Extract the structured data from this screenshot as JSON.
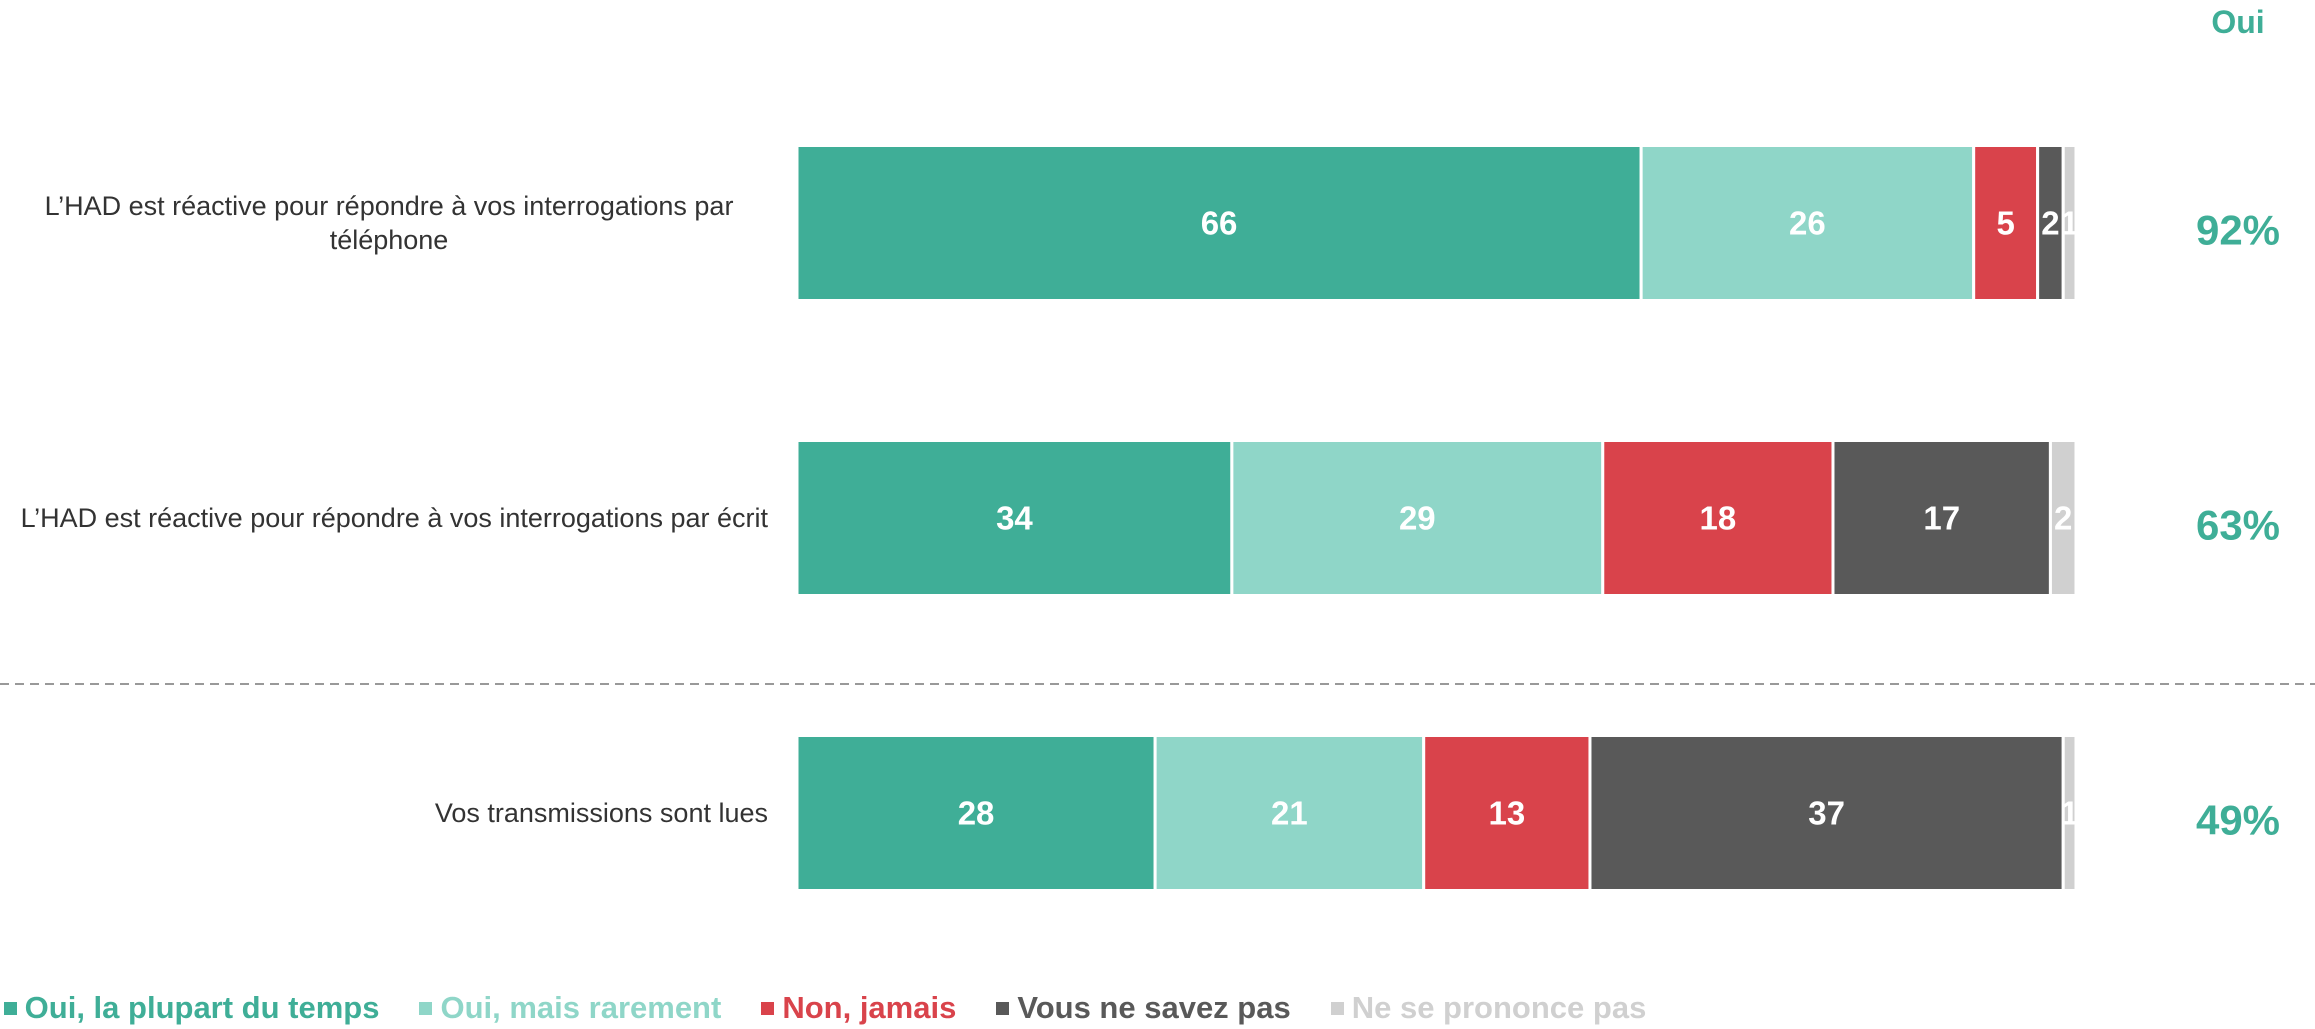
{
  "chart_data": {
    "type": "stacked-bar-horizontal",
    "categories": [
      "L’HAD est réactive pour répondre à vos interrogations par téléphone",
      "L’HAD est réactive pour répondre à vos interrogations par écrit",
      "Vos transmissions sont lues"
    ],
    "series": [
      {
        "name": "Oui, la plupart du temps",
        "color": "#3fae97",
        "values": [
          66,
          34,
          28
        ]
      },
      {
        "name": "Oui, mais rarement",
        "color": "#8fd6c8",
        "values": [
          26,
          29,
          21
        ]
      },
      {
        "name": "Non, jamais",
        "color": "#d9434b",
        "values": [
          5,
          18,
          13
        ]
      },
      {
        "name": "Vous ne savez pas",
        "color": "#595959",
        "values": [
          2,
          17,
          37
        ]
      },
      {
        "name": "Ne se prononce pas",
        "color": "#d0d0d0",
        "values": [
          1,
          2,
          1
        ]
      }
    ],
    "xlim": [
      0,
      100
    ],
    "totals": {
      "name": "Oui",
      "color": "#3fae97",
      "values": [
        92,
        63,
        49
      ],
      "value_labels": [
        "92%",
        "63%",
        "49%"
      ]
    }
  }
}
